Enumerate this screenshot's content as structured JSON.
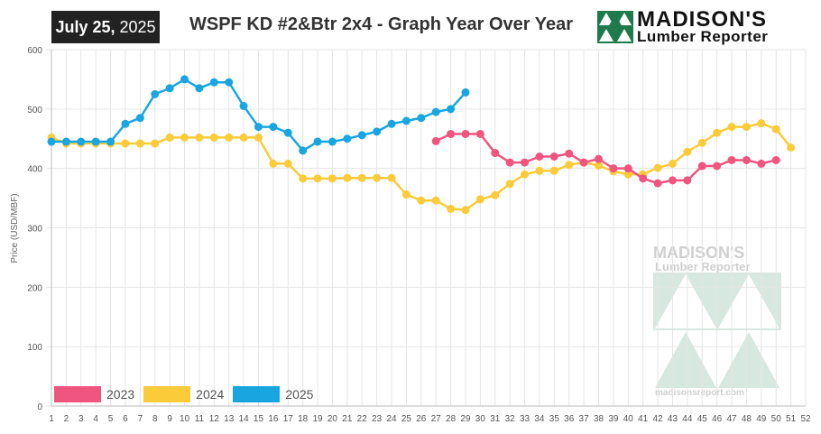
{
  "header": {
    "date_month_day": "July 25,",
    "date_year": "2025",
    "title": "WSPF KD #2&Btr 2x4 - Graph Year Over Year"
  },
  "logo": {
    "name": "MADISON'S",
    "subtitle": "Lumber Reporter"
  },
  "watermark": {
    "name": "MADISON'S",
    "subtitle": "Lumber Reporter",
    "url": "madisonsreport.com"
  },
  "colors": {
    "s2023": "#f0557f",
    "s2024": "#fccb3a",
    "s2025": "#19a6e0",
    "grid": "#e5e5e5",
    "logo_green": "#1f7a4d"
  },
  "chart_data": {
    "type": "line",
    "title": "WSPF KD #2&Btr 2x4 - Graph Year Over Year",
    "ylabel": "Price  (USD/MBF)",
    "xlabel": "",
    "xlim": [
      1,
      52
    ],
    "ylim": [
      0,
      600
    ],
    "yticks": [
      0,
      100,
      200,
      300,
      400,
      500,
      600
    ],
    "xticks": [
      1,
      2,
      3,
      4,
      5,
      6,
      7,
      8,
      9,
      10,
      11,
      12,
      13,
      14,
      15,
      16,
      17,
      18,
      19,
      20,
      21,
      22,
      23,
      24,
      25,
      26,
      27,
      28,
      29,
      30,
      31,
      32,
      33,
      34,
      35,
      36,
      37,
      38,
      39,
      40,
      41,
      42,
      43,
      44,
      45,
      46,
      47,
      48,
      49,
      50,
      51,
      52
    ],
    "grid": true,
    "legend_position": "bottom-left",
    "series": [
      {
        "name": "2023",
        "color_key": "s2023",
        "x": [
          27,
          28,
          29,
          30,
          31,
          32,
          33,
          34,
          35,
          36,
          37,
          38,
          39,
          40,
          41,
          42,
          43,
          44,
          45,
          46,
          47,
          48,
          49,
          50
        ],
        "y": [
          446,
          458,
          458,
          458,
          426,
          410,
          410,
          420,
          420,
          425,
          410,
          416,
          400,
          400,
          383,
          375,
          380,
          380,
          404,
          404,
          414,
          414,
          408,
          414
        ]
      },
      {
        "name": "2024",
        "color_key": "s2024",
        "x": [
          1,
          2,
          3,
          4,
          5,
          6,
          7,
          8,
          9,
          10,
          11,
          12,
          13,
          14,
          15,
          16,
          17,
          18,
          19,
          20,
          21,
          22,
          23,
          24,
          25,
          26,
          27,
          28,
          29,
          30,
          31,
          32,
          33,
          34,
          35,
          36,
          37,
          38,
          39,
          40,
          41,
          42,
          43,
          44,
          45,
          46,
          47,
          48,
          49,
          50,
          51
        ],
        "y": [
          452,
          442,
          442,
          442,
          442,
          442,
          442,
          442,
          452,
          452,
          452,
          452,
          452,
          452,
          452,
          408,
          408,
          383,
          383,
          383,
          384,
          384,
          384,
          384,
          356,
          346,
          346,
          332,
          330,
          348,
          355,
          374,
          390,
          396,
          396,
          406,
          410,
          405,
          395,
          390,
          390,
          401,
          408,
          428,
          443,
          460,
          470,
          470,
          476,
          466,
          435
        ]
      },
      {
        "name": "2025",
        "color_key": "s2025",
        "x": [
          1,
          2,
          3,
          4,
          5,
          6,
          7,
          8,
          9,
          10,
          11,
          12,
          13,
          14,
          15,
          16,
          17,
          18,
          19,
          20,
          21,
          22,
          23,
          24,
          25,
          26,
          27,
          28,
          29
        ],
        "y": [
          445,
          445,
          445,
          445,
          445,
          475,
          485,
          525,
          535,
          550,
          535,
          545,
          545,
          505,
          470,
          470,
          460,
          430,
          445,
          445,
          450,
          456,
          462,
          475,
          480,
          485,
          495,
          500,
          528
        ]
      }
    ]
  }
}
